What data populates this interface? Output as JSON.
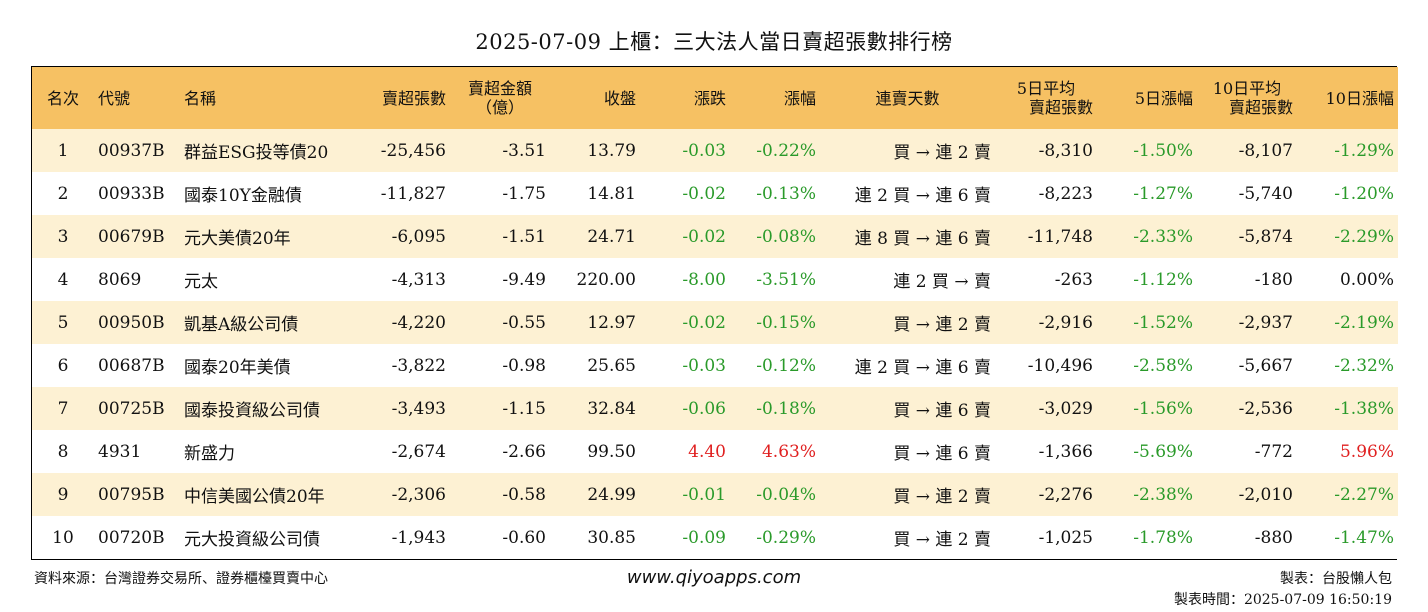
{
  "title": "2025-07-09 上櫃：三大法人當日賣超張數排行榜",
  "headers": {
    "rank": "名次",
    "code": "代號",
    "name": "名稱",
    "sell_shares": "賣超張數",
    "sell_amount_l1": "賣超金額",
    "sell_amount_l2": "（億）",
    "close": "收盤",
    "change": "漲跌",
    "change_pct": "漲幅",
    "streak": "連賣天數",
    "avg5_l1": "5日平均",
    "avg5_l2": "賣超張數",
    "pct5": "5日漲幅",
    "avg10_l1": "10日平均",
    "avg10_l2": "賣超張數",
    "pct10": "10日漲幅"
  },
  "rows": [
    {
      "rank": "1",
      "code": "00937B",
      "name": "群益ESG投等債20",
      "sell": "-25,456",
      "amount": "-3.51",
      "close": "13.79",
      "chg": "-0.03",
      "chg_color": "green",
      "chgpct": "-0.22%",
      "streak": "買 → 連 2 賣",
      "avg5": "-8,310",
      "pct5": "-1.50%",
      "pct5_color": "green",
      "avg10": "-8,107",
      "pct10": "-1.29%",
      "pct10_color": "green"
    },
    {
      "rank": "2",
      "code": "00933B",
      "name": "國泰10Y金融債",
      "sell": "-11,827",
      "amount": "-1.75",
      "close": "14.81",
      "chg": "-0.02",
      "chg_color": "green",
      "chgpct": "-0.13%",
      "streak": "連 2 買 → 連 6 賣",
      "avg5": "-8,223",
      "pct5": "-1.27%",
      "pct5_color": "green",
      "avg10": "-5,740",
      "pct10": "-1.20%",
      "pct10_color": "green"
    },
    {
      "rank": "3",
      "code": "00679B",
      "name": "元大美債20年",
      "sell": "-6,095",
      "amount": "-1.51",
      "close": "24.71",
      "chg": "-0.02",
      "chg_color": "green",
      "chgpct": "-0.08%",
      "streak": "連 8 買 → 連 6 賣",
      "avg5": "-11,748",
      "pct5": "-2.33%",
      "pct5_color": "green",
      "avg10": "-5,874",
      "pct10": "-2.29%",
      "pct10_color": "green"
    },
    {
      "rank": "4",
      "code": "8069",
      "name": "元太",
      "sell": "-4,313",
      "amount": "-9.49",
      "close": "220.00",
      "chg": "-8.00",
      "chg_color": "green",
      "chgpct": "-3.51%",
      "streak": "連 2 買 → 賣",
      "avg5": "-263",
      "pct5": "-1.12%",
      "pct5_color": "green",
      "avg10": "-180",
      "pct10": "0.00%",
      "pct10_color": "black"
    },
    {
      "rank": "5",
      "code": "00950B",
      "name": "凱基A級公司債",
      "sell": "-4,220",
      "amount": "-0.55",
      "close": "12.97",
      "chg": "-0.02",
      "chg_color": "green",
      "chgpct": "-0.15%",
      "streak": "買 → 連 2 賣",
      "avg5": "-2,916",
      "pct5": "-1.52%",
      "pct5_color": "green",
      "avg10": "-2,937",
      "pct10": "-2.19%",
      "pct10_color": "green"
    },
    {
      "rank": "6",
      "code": "00687B",
      "name": "國泰20年美債",
      "sell": "-3,822",
      "amount": "-0.98",
      "close": "25.65",
      "chg": "-0.03",
      "chg_color": "green",
      "chgpct": "-0.12%",
      "streak": "連 2 買 → 連 6 賣",
      "avg5": "-10,496",
      "pct5": "-2.58%",
      "pct5_color": "green",
      "avg10": "-5,667",
      "pct10": "-2.32%",
      "pct10_color": "green"
    },
    {
      "rank": "7",
      "code": "00725B",
      "name": "國泰投資級公司債",
      "sell": "-3,493",
      "amount": "-1.15",
      "close": "32.84",
      "chg": "-0.06",
      "chg_color": "green",
      "chgpct": "-0.18%",
      "streak": "買 → 連 6 賣",
      "avg5": "-3,029",
      "pct5": "-1.56%",
      "pct5_color": "green",
      "avg10": "-2,536",
      "pct10": "-1.38%",
      "pct10_color": "green"
    },
    {
      "rank": "8",
      "code": "4931",
      "name": "新盛力",
      "sell": "-2,674",
      "amount": "-2.66",
      "close": "99.50",
      "chg": "4.40",
      "chg_color": "red",
      "chgpct": "4.63%",
      "streak": "買 → 連 6 賣",
      "avg5": "-1,366",
      "pct5": "-5.69%",
      "pct5_color": "green",
      "avg10": "-772",
      "pct10": "5.96%",
      "pct10_color": "red"
    },
    {
      "rank": "9",
      "code": "00795B",
      "name": "中信美國公債20年",
      "sell": "-2,306",
      "amount": "-0.58",
      "close": "24.99",
      "chg": "-0.01",
      "chg_color": "green",
      "chgpct": "-0.04%",
      "streak": "買 → 連 2 賣",
      "avg5": "-2,276",
      "pct5": "-2.38%",
      "pct5_color": "green",
      "avg10": "-2,010",
      "pct10": "-2.27%",
      "pct10_color": "green"
    },
    {
      "rank": "10",
      "code": "00720B",
      "name": "元大投資級公司債",
      "sell": "-1,943",
      "amount": "-0.60",
      "close": "30.85",
      "chg": "-0.09",
      "chg_color": "green",
      "chgpct": "-0.29%",
      "streak": "買 → 連 2 賣",
      "avg5": "-1,025",
      "pct5": "-1.78%",
      "pct5_color": "green",
      "avg10": "-880",
      "pct10": "-1.47%",
      "pct10_color": "green"
    }
  ],
  "footer": {
    "source": "資料來源：台灣證券交易所、證券櫃檯買賣中心",
    "website": "www.qiyoapps.com",
    "maker": "製表：台股懶人包",
    "made_time": "製表時間：2025-07-09 16:50:19"
  },
  "colors": {
    "header_bg": "#f6c163",
    "odd_row_bg": "#fdf1d3",
    "up": "#e02020",
    "down": "#2a9a2a"
  }
}
